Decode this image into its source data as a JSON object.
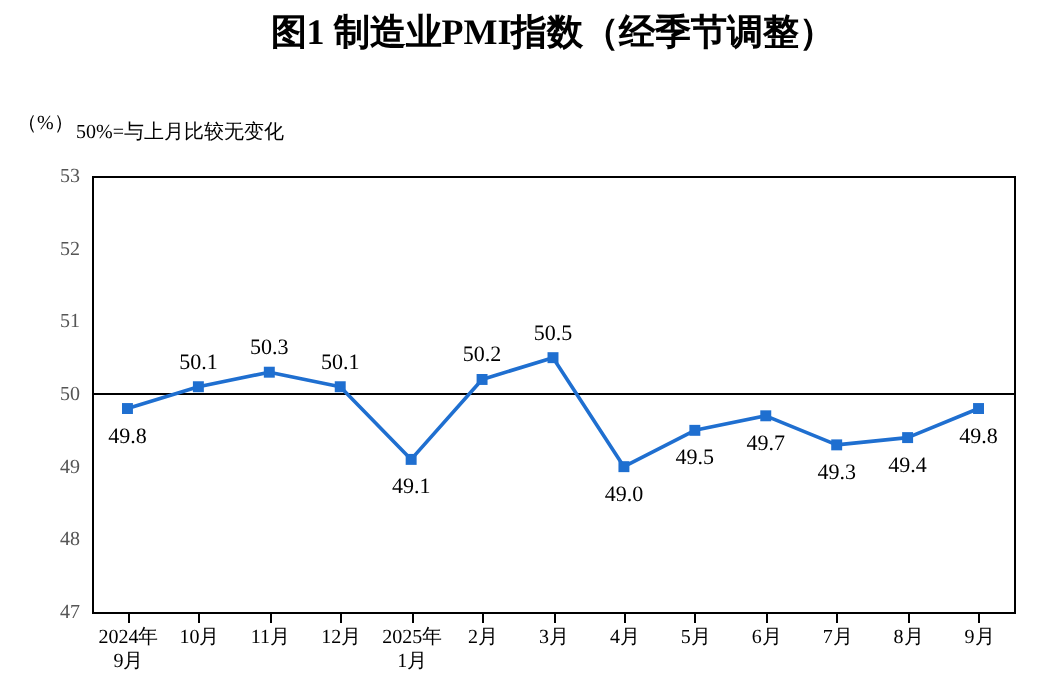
{
  "chart_data": {
    "type": "line",
    "title": "图1  制造业PMI指数（经季节调整）",
    "ylabel": "（%）",
    "annotations": [
      "50%=与上月比较无变化"
    ],
    "categories": [
      "2024年\n9月",
      "10月",
      "11月",
      "12月",
      "2025年\n1月",
      "2月",
      "3月",
      "4月",
      "5月",
      "6月",
      "7月",
      "8月",
      "9月"
    ],
    "series": [
      {
        "color": "#1f6fd0",
        "values": [
          49.8,
          50.1,
          50.3,
          50.1,
          49.1,
          50.2,
          50.5,
          49.0,
          49.5,
          49.7,
          49.3,
          49.4,
          49.8
        ],
        "value_labels": [
          "49.8",
          "50.1",
          "50.3",
          "50.1",
          "49.1",
          "50.2",
          "50.5",
          "49.0",
          "49.5",
          "49.7",
          "49.3",
          "49.4",
          "49.8"
        ]
      }
    ],
    "ylim": [
      47,
      53
    ],
    "yticks": [
      47,
      48,
      49,
      50,
      51,
      52,
      53
    ],
    "ref_lines": [
      {
        "axis": "y",
        "value": 50,
        "color": "#000000"
      }
    ],
    "data_labels": true,
    "marker": "square",
    "line_style": "solid",
    "grid": false
  }
}
